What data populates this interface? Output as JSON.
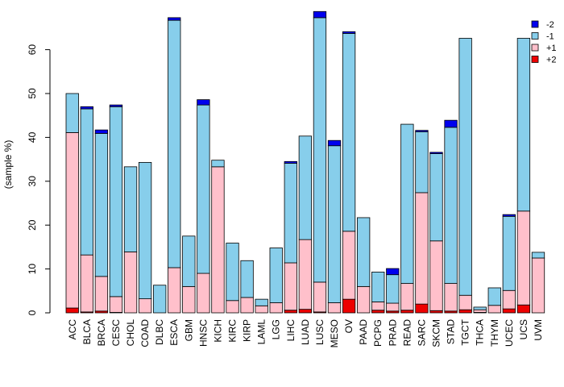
{
  "chart_data": {
    "type": "bar",
    "stacked": true,
    "title": "",
    "xlabel": "",
    "ylabel": "(sample %)",
    "ylim": [
      0,
      68
    ],
    "yticks": [
      0,
      10,
      20,
      30,
      40,
      50,
      60
    ],
    "grid": false,
    "legend_position": "top-right",
    "categories": [
      "ACC",
      "BLCA",
      "BRCA",
      "CESC",
      "CHOL",
      "COAD",
      "DLBC",
      "ESCA",
      "GBM",
      "HNSC",
      "KICH",
      "KIRC",
      "KIRP",
      "LAML",
      "LGG",
      "LIHC",
      "LUAD",
      "LUSC",
      "MESO",
      "OV",
      "PAAD",
      "PCPG",
      "PRAD",
      "READ",
      "SARC",
      "SKCM",
      "STAD",
      "TGCT",
      "THCA",
      "THYM",
      "UCEC",
      "UCS",
      "UVM"
    ],
    "series": [
      {
        "name": "+2",
        "color": "#ee0000",
        "values": [
          1.1,
          0.2,
          0.4,
          0.1,
          0,
          0,
          0,
          0,
          0,
          0,
          0,
          0,
          0,
          0,
          0,
          0.6,
          0.8,
          0.2,
          0,
          3.1,
          0,
          0.6,
          0.4,
          0.6,
          2.0,
          0.5,
          0.4,
          0.7,
          0.1,
          0,
          0.9,
          1.8,
          0
        ]
      },
      {
        "name": "+1",
        "color": "#ffc0cb",
        "values": [
          40.0,
          13.0,
          7.9,
          3.6,
          13.9,
          3.2,
          0,
          10.3,
          6.0,
          9.0,
          33.3,
          2.8,
          3.5,
          1.6,
          2.3,
          10.8,
          15.9,
          6.8,
          2.3,
          15.5,
          6.0,
          1.9,
          1.8,
          6.1,
          25.4,
          15.9,
          6.3,
          3.3,
          0.6,
          1.7,
          4.2,
          21.4,
          12.5
        ]
      },
      {
        "name": "-1",
        "color": "#87ceeb",
        "values": [
          8.9,
          33.3,
          32.6,
          43.3,
          19.4,
          31.1,
          6.3,
          56.4,
          11.5,
          38.4,
          1.5,
          13.1,
          8.4,
          1.5,
          12.5,
          22.7,
          23.6,
          60.3,
          35.8,
          45.1,
          15.7,
          6.8,
          6.5,
          36.3,
          13.9,
          19.9,
          35.6,
          58.6,
          0.6,
          4.0,
          16.9,
          39.4,
          1.3
        ]
      },
      {
        "name": "-2",
        "color": "#0000ee",
        "values": [
          0,
          0.5,
          0.8,
          0.4,
          0,
          0,
          0,
          0.6,
          0,
          1.2,
          0,
          0,
          0,
          0,
          0,
          0.4,
          0,
          1.4,
          1.2,
          0.4,
          0,
          0,
          1.4,
          0,
          0.3,
          0.3,
          1.6,
          0,
          0,
          0,
          0.4,
          0,
          0
        ]
      }
    ]
  }
}
